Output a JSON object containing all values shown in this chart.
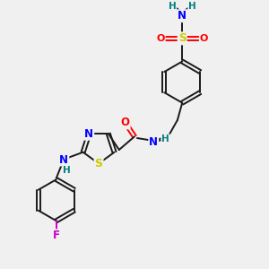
{
  "background_color": "#f0f0f0",
  "bond_color": "#1a1a1a",
  "atom_colors": {
    "N": "#0000ff",
    "O": "#ff0000",
    "S": "#cccc00",
    "F": "#cc00cc",
    "H": "#008080",
    "C": "#1a1a1a"
  },
  "figsize": [
    3.0,
    3.0
  ],
  "dpi": 100
}
